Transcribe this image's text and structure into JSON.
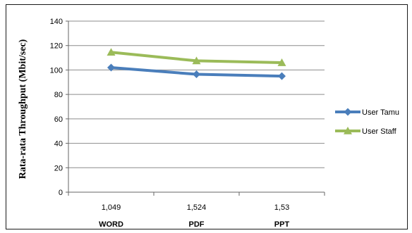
{
  "chart_data": {
    "type": "line",
    "ylabel": "Rata-rata Throughput (Mbit/sec)",
    "categories": [
      "1,049",
      "1,524",
      "1,53"
    ],
    "category_groups": [
      "WORD",
      "PDF",
      "PPT"
    ],
    "ylim": [
      0,
      140
    ],
    "yticks": [
      "0",
      "20",
      "40",
      "60",
      "80",
      "100",
      "120",
      "140"
    ],
    "grid": true,
    "legend_position": "right",
    "series": [
      {
        "name": "User Tamu",
        "values": [
          102,
          96.5,
          95
        ],
        "color": "#4a7ebb",
        "marker": "diamond"
      },
      {
        "name": "User Staff",
        "values": [
          114.5,
          107.5,
          106
        ],
        "color": "#9bbb59",
        "marker": "triangle"
      }
    ]
  }
}
